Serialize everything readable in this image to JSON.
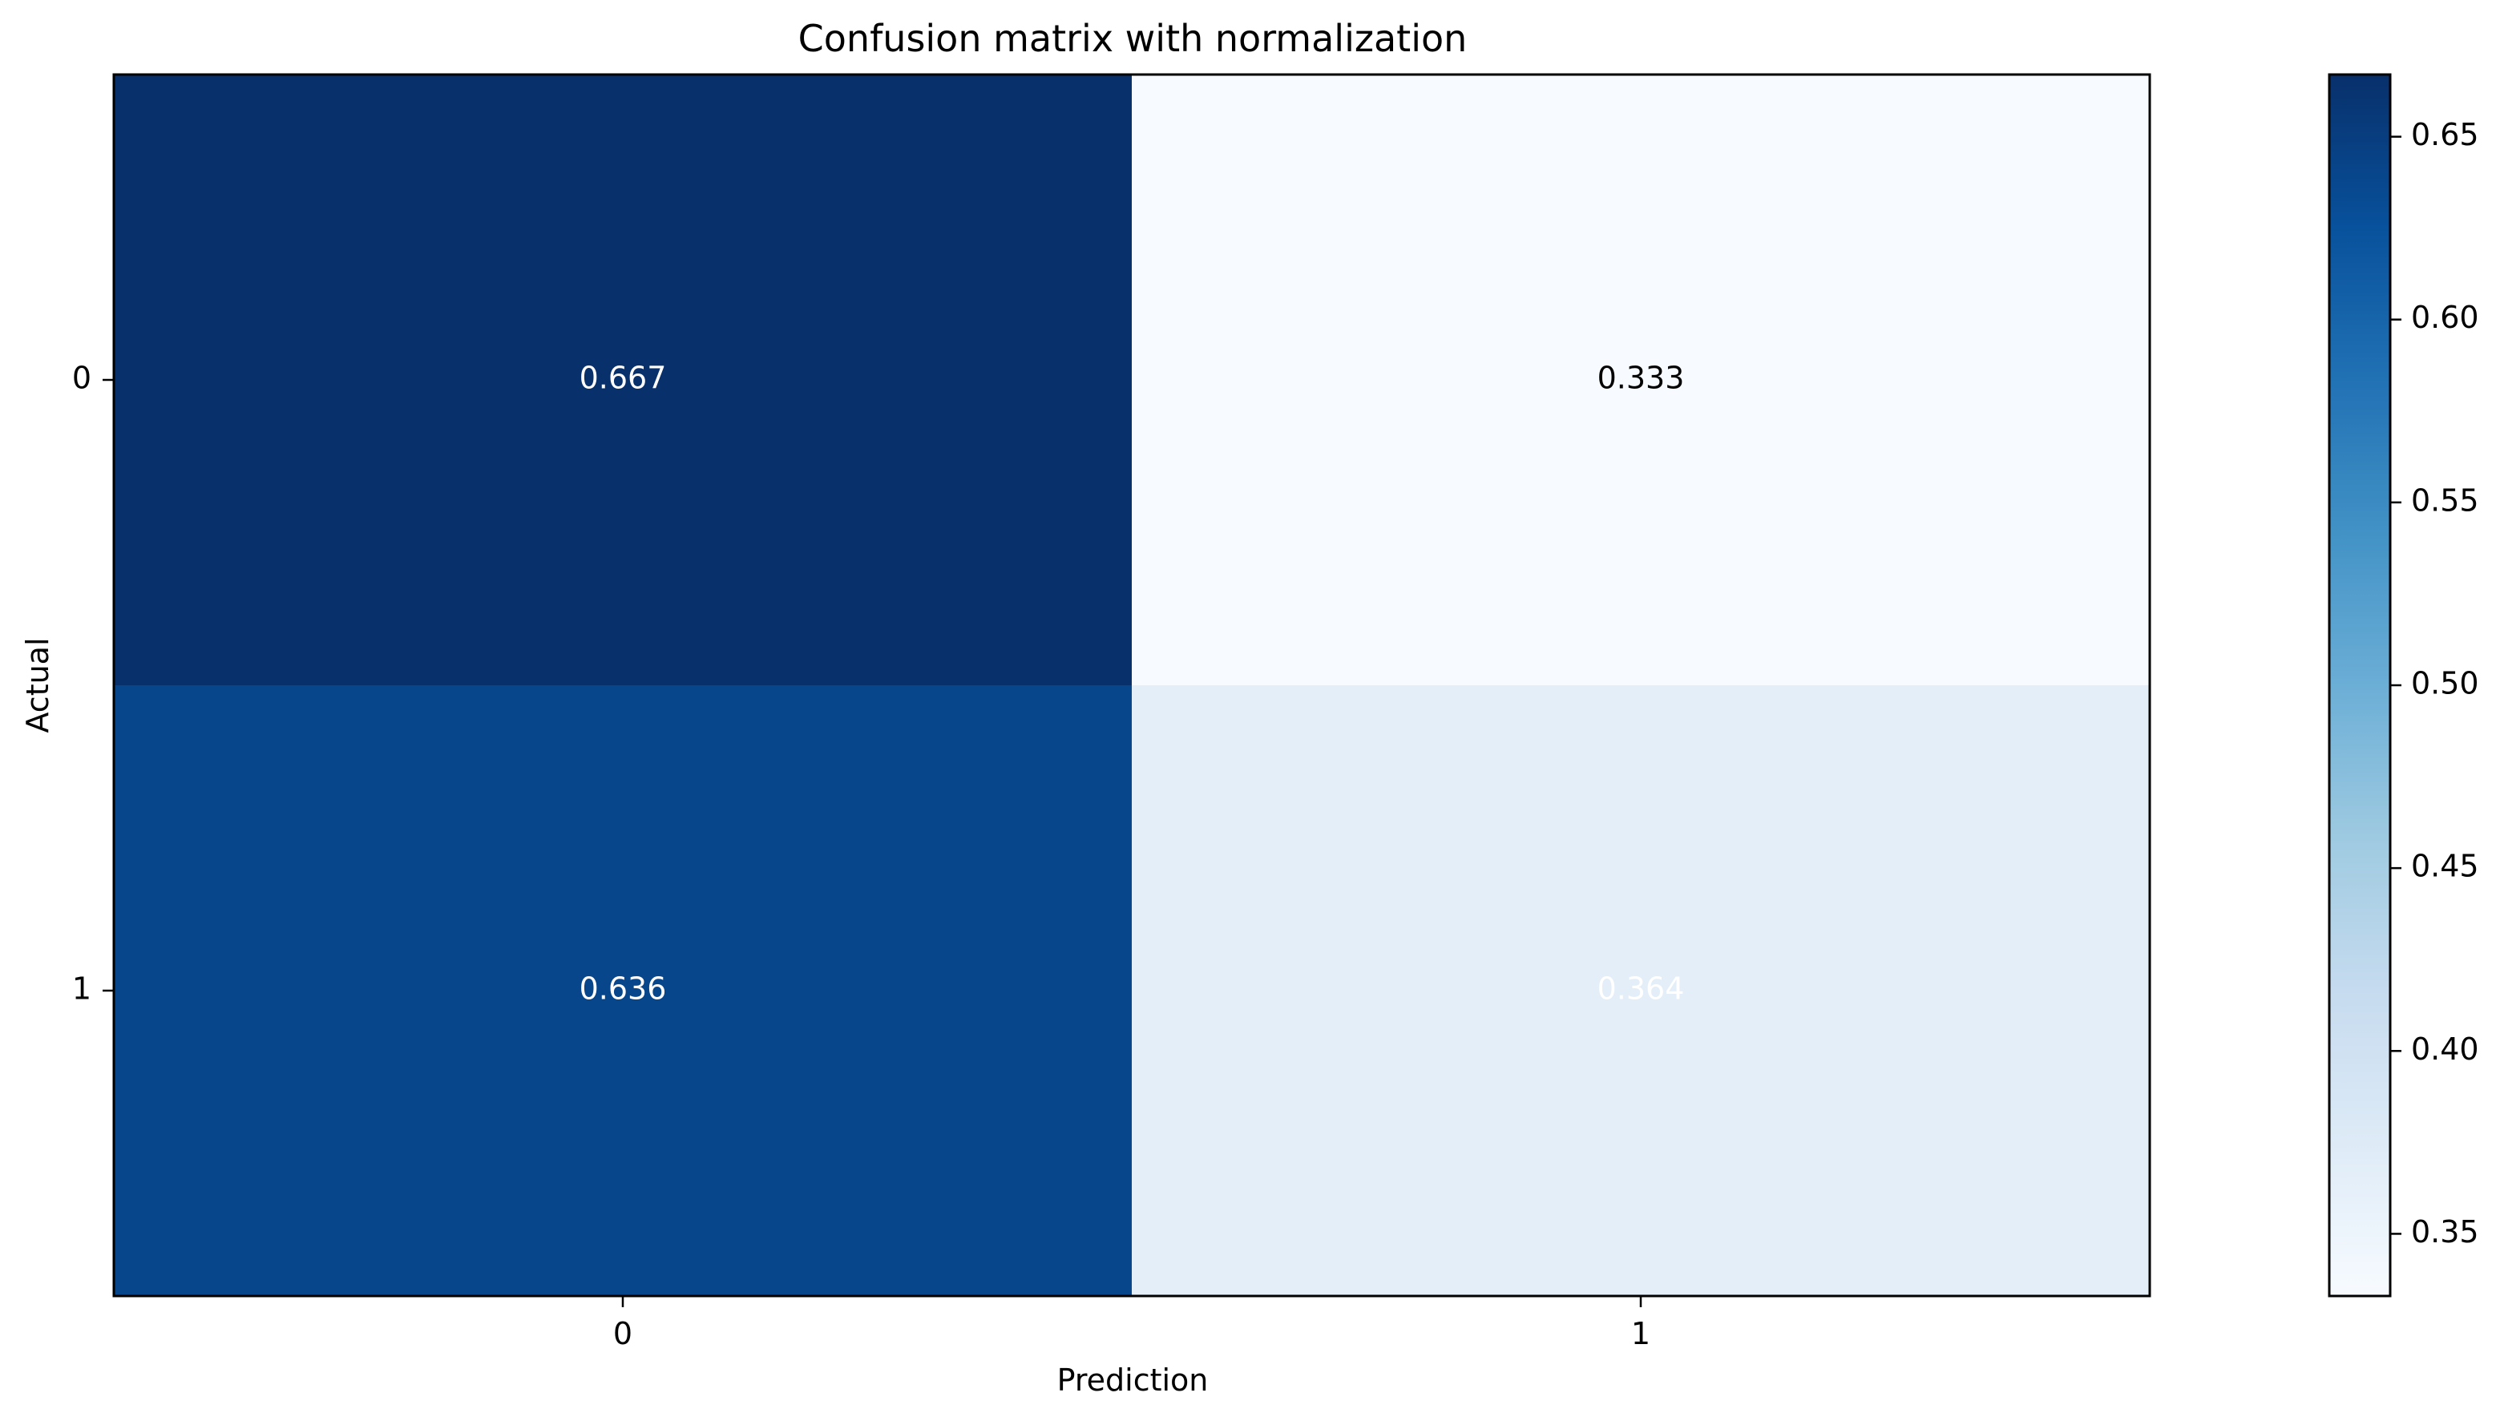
{
  "chart_data": {
    "type": "heatmap",
    "title": "Confusion matrix with normalization",
    "xlabel": "Prediction",
    "ylabel": "Actual",
    "x_categories": [
      "0",
      "1"
    ],
    "y_categories": [
      "0",
      "1"
    ],
    "values": [
      [
        0.667,
        0.333
      ],
      [
        0.636,
        0.364
      ]
    ],
    "cell_labels": [
      [
        "0.667",
        "0.333"
      ],
      [
        "0.636",
        "0.364"
      ]
    ],
    "cell_colors": [
      [
        "#08306b",
        "#f7fbff"
      ],
      [
        "#08468b",
        "#e3eef8"
      ]
    ],
    "cell_text_colors": [
      [
        "#ffffff",
        "#000000"
      ],
      [
        "#ffffff",
        "#ffffff"
      ]
    ],
    "colorbar": {
      "colormap": "Blues",
      "range": [
        0.333,
        0.667
      ],
      "ticks": [
        0.35,
        0.4,
        0.45,
        0.5,
        0.55,
        0.6,
        0.65
      ],
      "tick_labels": [
        "0.35",
        "0.40",
        "0.45",
        "0.50",
        "0.55",
        "0.60",
        "0.65"
      ]
    },
    "grid": false
  }
}
